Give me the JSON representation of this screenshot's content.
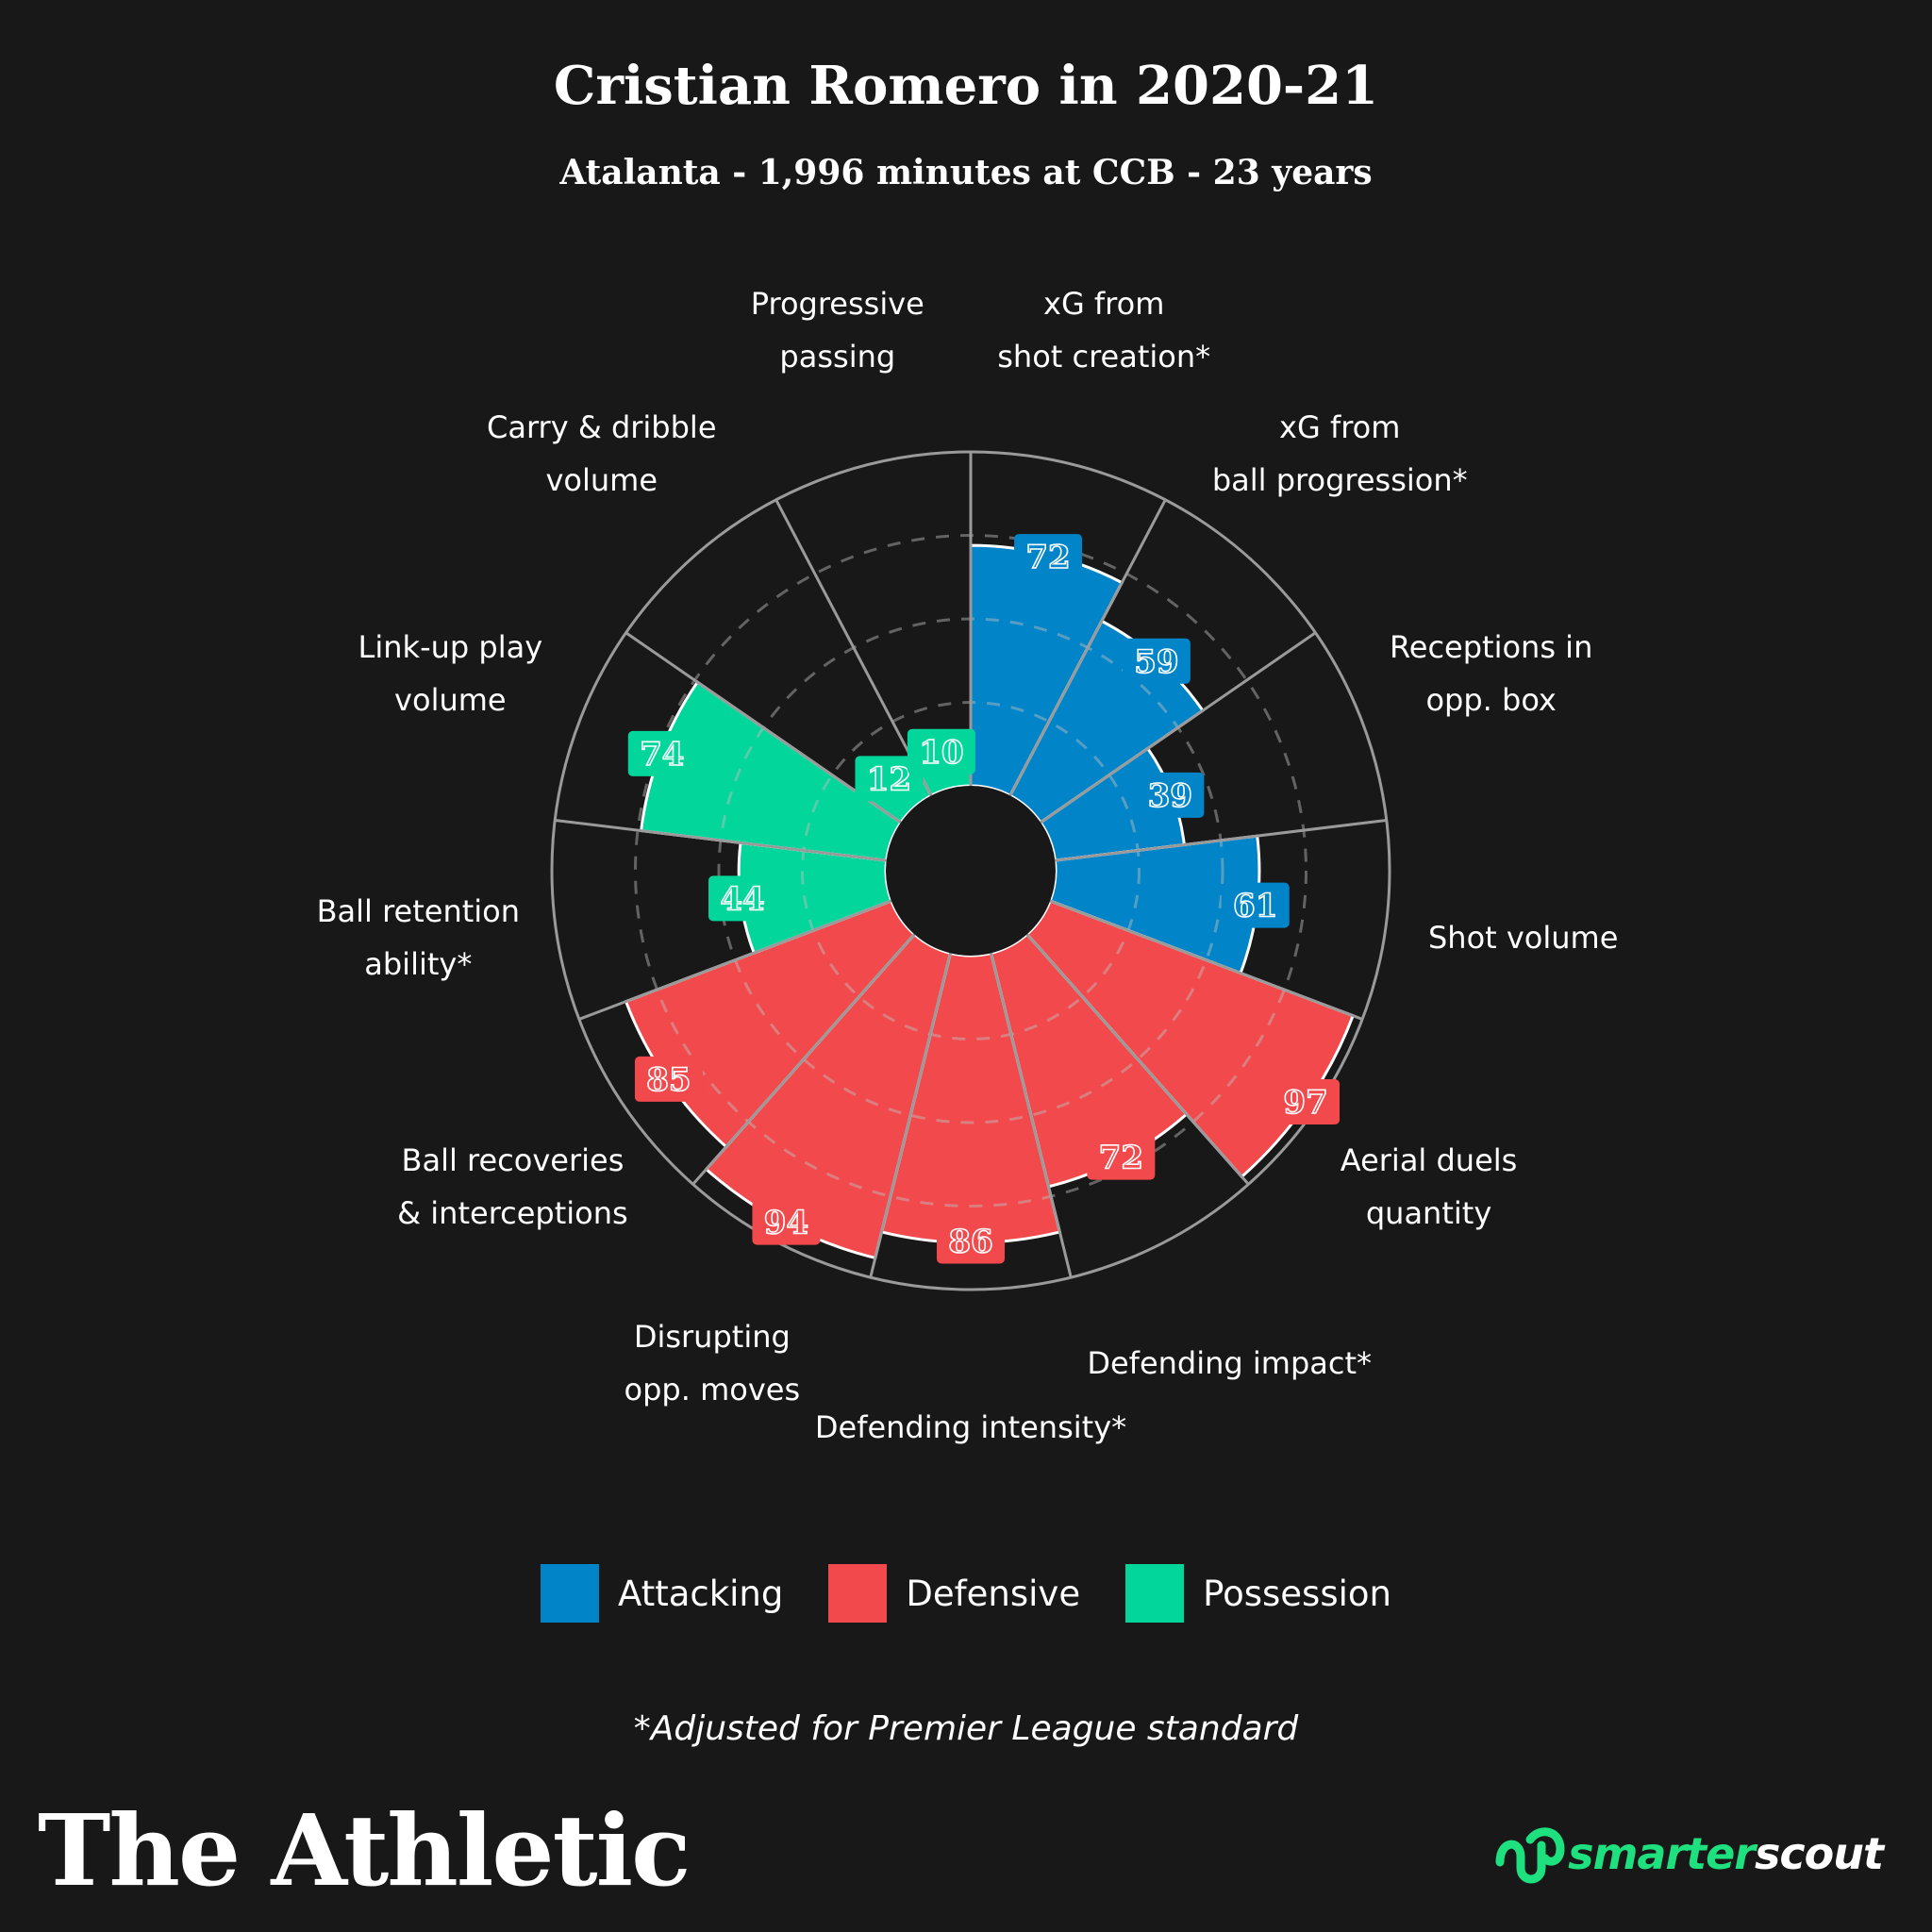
{
  "title": "Cristian Romero in 2020-21",
  "subtitle": "Atalanta - 1,996 minutes at CCB - 23 years",
  "footnote": "*Adjusted for Premier League standard",
  "brand_left": "The Athletic",
  "brand_right": {
    "part1": "smarter",
    "part2": "scout"
  },
  "colors": {
    "background": "#181818",
    "Attacking": "#0284c9",
    "Defensive": "#f2494c",
    "Possession": "#02d69a",
    "ring": "#9a9a9a"
  },
  "chart_data": {
    "type": "polar-bar",
    "rlim": [
      0,
      100
    ],
    "gridlines": [
      25,
      50,
      75
    ],
    "legend_position": "bottom-center",
    "categories": [
      {
        "label": "xG from\nshot creation*",
        "value": 72,
        "group": "Attacking"
      },
      {
        "label": "xG from\nball progression*",
        "value": 59,
        "group": "Attacking"
      },
      {
        "label": "Receptions in\nopp. box",
        "value": 39,
        "group": "Attacking"
      },
      {
        "label": "Shot volume",
        "value": 61,
        "group": "Attacking"
      },
      {
        "label": "Aerial duels\nquantity",
        "value": 97,
        "group": "Defensive"
      },
      {
        "label": "Defending impact*",
        "value": 72,
        "group": "Defensive"
      },
      {
        "label": "Defending intensity*",
        "value": 86,
        "group": "Defensive"
      },
      {
        "label": "Disrupting\nopp. moves",
        "value": 94,
        "group": "Defensive"
      },
      {
        "label": "Ball recoveries\n& interceptions",
        "value": 85,
        "group": "Defensive"
      },
      {
        "label": "Ball retention\nability*",
        "value": 44,
        "group": "Possession"
      },
      {
        "label": "Link-up play\nvolume",
        "value": 74,
        "group": "Possession"
      },
      {
        "label": "Carry & dribble\nvolume",
        "value": 12,
        "group": "Possession"
      },
      {
        "label": "Progressive\npassing",
        "value": 10,
        "group": "Possession"
      }
    ],
    "legend": [
      "Attacking",
      "Defensive",
      "Possession"
    ]
  }
}
